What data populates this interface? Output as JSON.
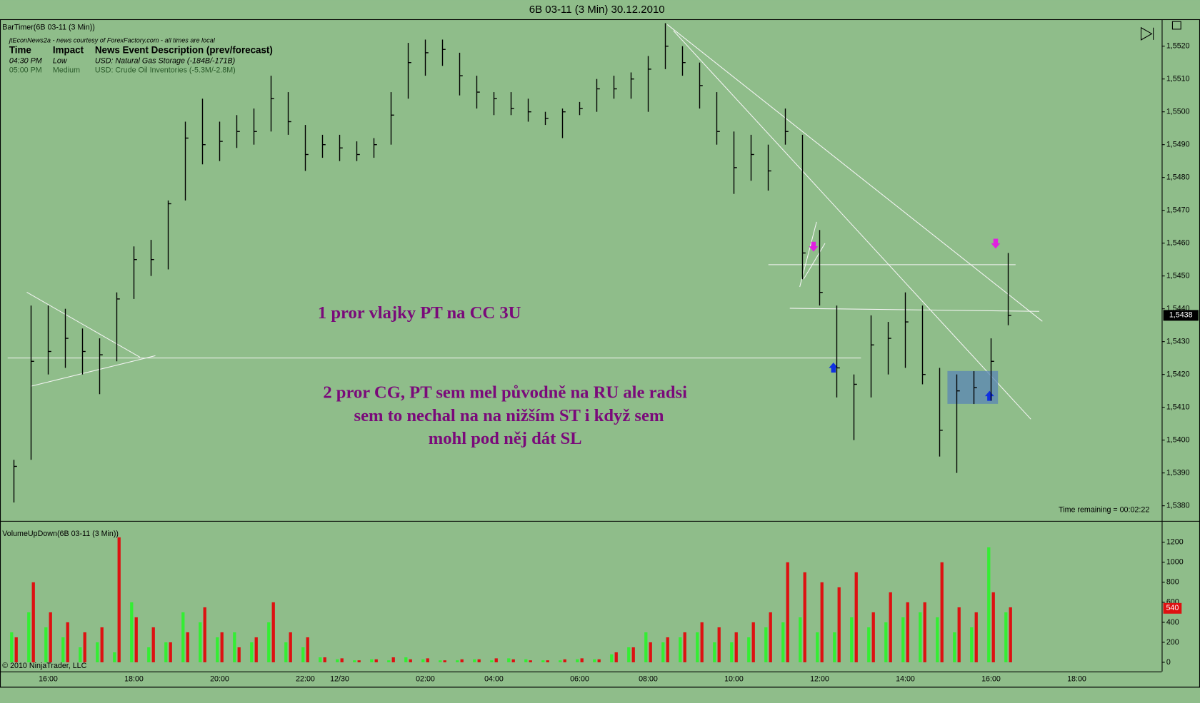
{
  "window_title": "6B 03-11 (3 Min)  30.12.2010",
  "news": {
    "source": "jtEconNews2a - news courtesy of ForexFactory.com - all times are local",
    "columns": [
      "Time",
      "Impact",
      "News Event Description (prev/forecast)"
    ],
    "rows": [
      [
        "04:30 PM",
        "Low",
        "USD: Natural Gas Storage (-184B/-171B)"
      ],
      [
        "05:00 PM",
        "Medium",
        "USD: Crude Oil Inventories (-5.3M/-2.8M)"
      ]
    ]
  },
  "copyright": "© 2010 NinjaTrader, LLC",
  "chart_data": [
    {
      "type": "ohlc",
      "title": "BarTimer(6B 03-11 (3 Min))",
      "color": "#000000",
      "categories": [
        null,
        null,
        "16:00",
        null,
        null,
        null,
        null,
        "18:00",
        null,
        null,
        null,
        null,
        "20:00",
        null,
        null,
        null,
        null,
        "22:00",
        null,
        "12/30",
        null,
        null,
        null,
        null,
        "02:00",
        null,
        null,
        null,
        "04:00",
        null,
        null,
        null,
        null,
        "06:00",
        null,
        null,
        null,
        "08:00",
        null,
        null,
        null,
        null,
        "10:00",
        null,
        null,
        null,
        null,
        "12:00",
        null,
        null,
        null,
        null,
        "14:00",
        null,
        null,
        null,
        null,
        "16:00",
        null,
        null,
        null,
        null,
        "18:00",
        null,
        null,
        null,
        null
      ],
      "high": [
        1.5394,
        1.5441,
        1.5441,
        1.544,
        1.5434,
        1.5431,
        1.5445,
        1.5459,
        1.5461,
        1.5473,
        1.5497,
        1.5504,
        1.5497,
        1.5499,
        1.5501,
        1.5511,
        1.5506,
        1.5496,
        1.5493,
        1.5493,
        1.5491,
        1.5492,
        1.5506,
        1.5521,
        1.5522,
        1.5522,
        1.5518,
        1.5511,
        1.5506,
        1.5506,
        1.5504,
        1.55,
        1.5501,
        1.5503,
        1.551,
        1.5511,
        1.5512,
        1.5517,
        1.5527,
        1.552,
        1.5515,
        1.5506,
        1.5494,
        1.5493,
        1.549,
        1.5501,
        1.5493,
        1.5464,
        1.5441,
        1.542,
        1.5438,
        1.5436,
        1.5445,
        1.5441,
        1.5422,
        1.542,
        1.5421,
        1.5431,
        1.5457,
        null,
        null,
        null,
        null,
        null,
        null,
        null,
        null
      ],
      "low": [
        1.5381,
        1.5394,
        1.542,
        1.5422,
        1.542,
        1.5414,
        1.5424,
        1.5443,
        1.545,
        1.5452,
        1.5473,
        1.5484,
        1.5485,
        1.5489,
        1.549,
        1.5494,
        1.5493,
        1.5482,
        1.5486,
        1.5485,
        1.5485,
        1.5486,
        1.549,
        1.5504,
        1.5511,
        1.5514,
        1.5505,
        1.5501,
        1.5499,
        1.5499,
        1.5497,
        1.5496,
        1.5492,
        1.5499,
        1.55,
        1.5504,
        1.5504,
        1.55,
        1.5513,
        1.5511,
        1.5501,
        1.549,
        1.5475,
        1.5479,
        1.5476,
        1.549,
        1.5449,
        1.5441,
        1.5413,
        1.54,
        1.5413,
        1.542,
        1.5422,
        1.5417,
        1.5395,
        1.539,
        1.5411,
        1.5412,
        1.5435,
        null,
        null,
        null,
        null,
        null,
        null,
        null,
        null
      ],
      "close": [
        1.5392,
        1.5424,
        1.5427,
        1.5431,
        1.5427,
        1.5426,
        1.5443,
        1.5455,
        1.5455,
        1.5472,
        1.5492,
        1.549,
        1.5491,
        1.5494,
        1.5494,
        1.5504,
        1.5497,
        1.5487,
        1.549,
        1.5489,
        1.5487,
        1.549,
        1.5499,
        1.5515,
        1.5518,
        1.5519,
        1.5511,
        1.5506,
        1.5504,
        1.5501,
        1.55,
        1.5498,
        1.55,
        1.5501,
        1.5507,
        1.5507,
        1.551,
        1.5513,
        1.552,
        1.5515,
        1.5508,
        1.5494,
        1.5483,
        1.5487,
        1.5482,
        1.5494,
        1.5457,
        1.5445,
        1.5422,
        1.5417,
        1.5429,
        1.5431,
        1.5436,
        1.542,
        1.5403,
        1.5415,
        1.5416,
        1.5424,
        1.5438,
        null,
        null,
        null,
        null,
        null,
        null,
        null,
        null
      ],
      "ylim": [
        1.53754,
        1.55282
      ],
      "yticks": [
        {
          "value": 1.538,
          "label": "1,5380"
        },
        {
          "value": 1.539,
          "label": "1,5390"
        },
        {
          "value": 1.54,
          "label": "1,5400"
        },
        {
          "value": 1.541,
          "label": "1,5410"
        },
        {
          "value": 1.542,
          "label": "1,5420"
        },
        {
          "value": 1.543,
          "label": "1,5430"
        },
        {
          "value": 1.544,
          "label": "1,5440"
        },
        {
          "value": 1.545,
          "label": "1,5450"
        },
        {
          "value": 1.546,
          "label": "1,5460"
        },
        {
          "value": 1.547,
          "label": "1,5470"
        },
        {
          "value": 1.548,
          "label": "1,5480"
        },
        {
          "value": 1.549,
          "label": "1,5490"
        },
        {
          "value": 1.55,
          "label": "1,5500"
        },
        {
          "value": 1.551,
          "label": "1,5510"
        },
        {
          "value": 1.552,
          "label": "1,5520"
        }
      ],
      "last": {
        "value": 1.5438,
        "label": "1,5438"
      },
      "annotations": [
        "1 pror vlajky PT na CC 3U",
        "2 pror CG, PT sem mel původně na RU ale radsi",
        "sem to nechal na na nižším ST i když sem",
        "mohl pod něj dát SL"
      ],
      "status": "Time remaining = 00:02:22"
    },
    {
      "type": "volume",
      "title": "VolumeUpDown(6B 03-11 (3 Min))",
      "up_color": "#33ee33",
      "down_color": "#dd1111",
      "up": [
        300,
        500,
        350,
        250,
        150,
        200,
        100,
        600,
        150,
        200,
        500,
        400,
        250,
        300,
        200,
        400,
        200,
        150,
        50,
        30,
        20,
        30,
        20,
        50,
        30,
        20,
        20,
        30,
        20,
        40,
        30,
        20,
        20,
        30,
        30,
        80,
        150,
        300,
        200,
        250,
        300,
        200,
        200,
        250,
        350,
        400,
        450,
        300,
        300,
        450,
        350,
        400,
        450,
        500,
        450,
        300,
        350,
        1150,
        500,
        null,
        null,
        null,
        null,
        null,
        null,
        null,
        null
      ],
      "down": [
        250,
        800,
        500,
        400,
        300,
        350,
        1250,
        450,
        350,
        200,
        300,
        550,
        300,
        150,
        250,
        600,
        300,
        250,
        50,
        40,
        20,
        30,
        50,
        30,
        40,
        20,
        30,
        30,
        40,
        30,
        20,
        20,
        30,
        40,
        30,
        100,
        150,
        200,
        250,
        300,
        400,
        350,
        300,
        400,
        500,
        1000,
        900,
        800,
        750,
        900,
        500,
        700,
        600,
        600,
        1000,
        550,
        500,
        700,
        550,
        null,
        null,
        null,
        null,
        null,
        null,
        null,
        null
      ],
      "ylim": [
        -92,
        1399
      ],
      "yticks": [
        0,
        200,
        400,
        600,
        800,
        1000,
        1200
      ],
      "last": 540
    }
  ]
}
